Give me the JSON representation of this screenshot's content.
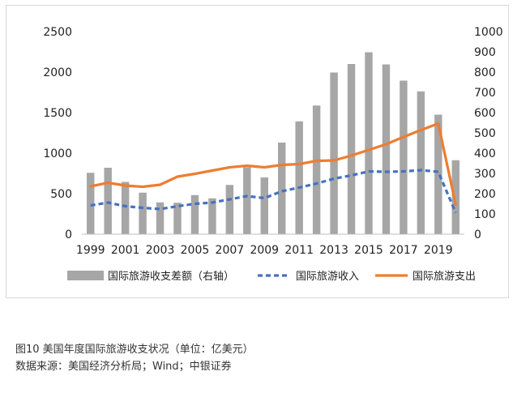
{
  "chart_data": {
    "type": "bar",
    "years": [
      1999,
      2000,
      2001,
      2002,
      2003,
      2004,
      2005,
      2006,
      2007,
      2008,
      2009,
      2010,
      2011,
      2012,
      2013,
      2014,
      2015,
      2016,
      2017,
      2018,
      2019,
      2020
    ],
    "x_tick_labels": [
      "1999",
      "2001",
      "2003",
      "2005",
      "2007",
      "2009",
      "2011",
      "2013",
      "2015",
      "2017",
      "2019"
    ],
    "left_axis": {
      "ylim": [
        0,
        2500
      ],
      "ticks": [
        "0",
        "500",
        "1000",
        "1500",
        "2000",
        "2500"
      ]
    },
    "right_axis": {
      "ylim": [
        0,
        1000
      ],
      "ticks": [
        "0",
        "100",
        "200",
        "300",
        "400",
        "500",
        "600",
        "700",
        "800",
        "900",
        "1000"
      ]
    },
    "grid": false,
    "legend_position": "bottom",
    "series": [
      {
        "name": "国际旅游收支差额（右轴）",
        "type": "bar",
        "axis": "right",
        "color": "#a6a6a6",
        "values": [
          303,
          328,
          258,
          205,
          157,
          155,
          193,
          177,
          243,
          330,
          280,
          452,
          557,
          635,
          798,
          840,
          898,
          838,
          758,
          705,
          590,
          365
        ]
      },
      {
        "name": "国际旅游收入",
        "type": "line",
        "style": "dashed",
        "axis": "left",
        "color": "#4472c4",
        "values": [
          355,
          390,
          345,
          325,
          310,
          345,
          375,
          390,
          430,
          470,
          445,
          530,
          575,
          625,
          685,
          725,
          775,
          770,
          775,
          790,
          770,
          265
        ]
      },
      {
        "name": "国际旅游支出",
        "type": "line",
        "style": "solid",
        "axis": "left",
        "color": "#ed7d31",
        "values": [
          590,
          635,
          600,
          585,
          610,
          710,
          745,
          785,
          825,
          845,
          825,
          855,
          865,
          905,
          910,
          970,
          1040,
          1110,
          1200,
          1285,
          1365,
          365
        ]
      }
    ]
  },
  "caption": {
    "line1": "图10   美国年度国际旅游收支状况（单位：亿美元）",
    "line2": "数据来源：美国经济分析局；Wind；中银证券"
  }
}
